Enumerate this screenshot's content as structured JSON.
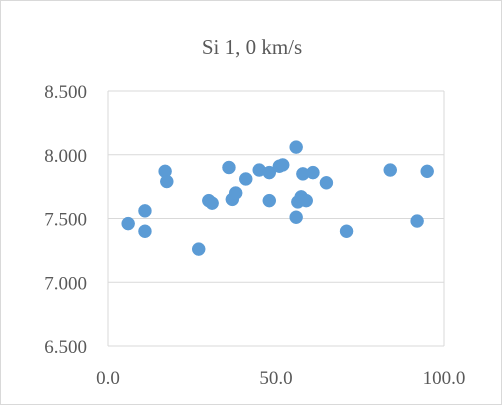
{
  "chart_data": {
    "type": "scatter",
    "title": "Si 1, 0 km/s",
    "xlabel": "",
    "ylabel": "",
    "xlim": [
      0,
      100
    ],
    "ylim": [
      6.5,
      8.5
    ],
    "xticks": [
      0,
      50,
      100
    ],
    "xtick_labels": [
      "0.0",
      "50.0",
      "100.0"
    ],
    "yticks": [
      6.5,
      7.0,
      7.5,
      8.0,
      8.5
    ],
    "ytick_labels": [
      "6.500",
      "7.000",
      "7.500",
      "8.000",
      "8.500"
    ],
    "grid": "horizontal",
    "legend": "none",
    "marker_color": "#5B9BD5",
    "points": [
      {
        "x": 6,
        "y": 7.46
      },
      {
        "x": 11,
        "y": 7.56
      },
      {
        "x": 11,
        "y": 7.4
      },
      {
        "x": 17,
        "y": 7.87
      },
      {
        "x": 17.5,
        "y": 7.79
      },
      {
        "x": 27,
        "y": 7.26
      },
      {
        "x": 30,
        "y": 7.64
      },
      {
        "x": 31,
        "y": 7.62
      },
      {
        "x": 36,
        "y": 7.9
      },
      {
        "x": 37,
        "y": 7.65
      },
      {
        "x": 38,
        "y": 7.7
      },
      {
        "x": 41,
        "y": 7.81
      },
      {
        "x": 45,
        "y": 7.88
      },
      {
        "x": 48,
        "y": 7.64
      },
      {
        "x": 48,
        "y": 7.86
      },
      {
        "x": 51,
        "y": 7.91
      },
      {
        "x": 52,
        "y": 7.92
      },
      {
        "x": 56,
        "y": 8.06
      },
      {
        "x": 56,
        "y": 7.51
      },
      {
        "x": 56.5,
        "y": 7.63
      },
      {
        "x": 57.5,
        "y": 7.67
      },
      {
        "x": 58,
        "y": 7.85
      },
      {
        "x": 59,
        "y": 7.64
      },
      {
        "x": 61,
        "y": 7.86
      },
      {
        "x": 65,
        "y": 7.78
      },
      {
        "x": 71,
        "y": 7.4
      },
      {
        "x": 84,
        "y": 7.88
      },
      {
        "x": 92,
        "y": 7.48
      },
      {
        "x": 95,
        "y": 7.87
      }
    ]
  }
}
